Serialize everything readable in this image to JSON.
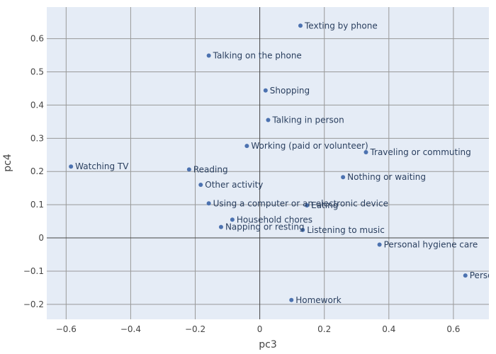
{
  "chart_data": {
    "type": "scatter",
    "title": "",
    "xlabel": "pc3",
    "ylabel": "pc4",
    "xlim": [
      -0.66,
      0.71
    ],
    "ylim": [
      -0.245,
      0.695
    ],
    "x_ticks": [
      -0.6,
      -0.4,
      -0.2,
      0,
      0.2,
      0.4,
      0.6
    ],
    "x_tick_labels": [
      "−0.6",
      "−0.4",
      "−0.2",
      "0",
      "0.2",
      "0.4",
      "0.6"
    ],
    "y_ticks": [
      -0.2,
      -0.1,
      0,
      0.1,
      0.2,
      0.3,
      0.4,
      0.5,
      0.6
    ],
    "y_tick_labels": [
      "−0.2",
      "−0.1",
      "0",
      "0.1",
      "0.2",
      "0.3",
      "0.4",
      "0.5",
      "0.6"
    ],
    "grid": true,
    "colors": {
      "plot_bg": "#e5ecf6",
      "marker": "#4c72b0",
      "grid": "#999999",
      "zeroline": "#444444"
    },
    "points": [
      {
        "label": "Texting by phone",
        "x": 0.126,
        "y": 0.639
      },
      {
        "label": "Talking on the phone",
        "x": -0.158,
        "y": 0.549
      },
      {
        "label": "Shopping",
        "x": 0.018,
        "y": 0.444
      },
      {
        "label": "Talking in person",
        "x": 0.026,
        "y": 0.355
      },
      {
        "label": "Working (paid or volunteer)",
        "x": -0.04,
        "y": 0.277
      },
      {
        "label": "Traveling or commuting",
        "x": 0.329,
        "y": 0.258
      },
      {
        "label": "Watching TV",
        "x": -0.585,
        "y": 0.215
      },
      {
        "label": "Reading",
        "x": -0.219,
        "y": 0.206
      },
      {
        "label": "Nothing or waiting",
        "x": 0.258,
        "y": 0.183
      },
      {
        "label": "Other activity",
        "x": -0.183,
        "y": 0.16
      },
      {
        "label": "Using a computer or an electronic device",
        "x": -0.158,
        "y": 0.104
      },
      {
        "label": "Eating",
        "x": 0.146,
        "y": 0.098
      },
      {
        "label": "Household chores",
        "x": -0.085,
        "y": 0.055
      },
      {
        "label": "Napping or resting",
        "x": -0.12,
        "y": 0.033
      },
      {
        "label": "Listening to music",
        "x": 0.133,
        "y": 0.024
      },
      {
        "label": "Personal hygiene care",
        "x": 0.371,
        "y": -0.02
      },
      {
        "label": "Personal care",
        "x": 0.637,
        "y": -0.113
      },
      {
        "label": "Homework",
        "x": 0.098,
        "y": -0.187
      }
    ]
  }
}
